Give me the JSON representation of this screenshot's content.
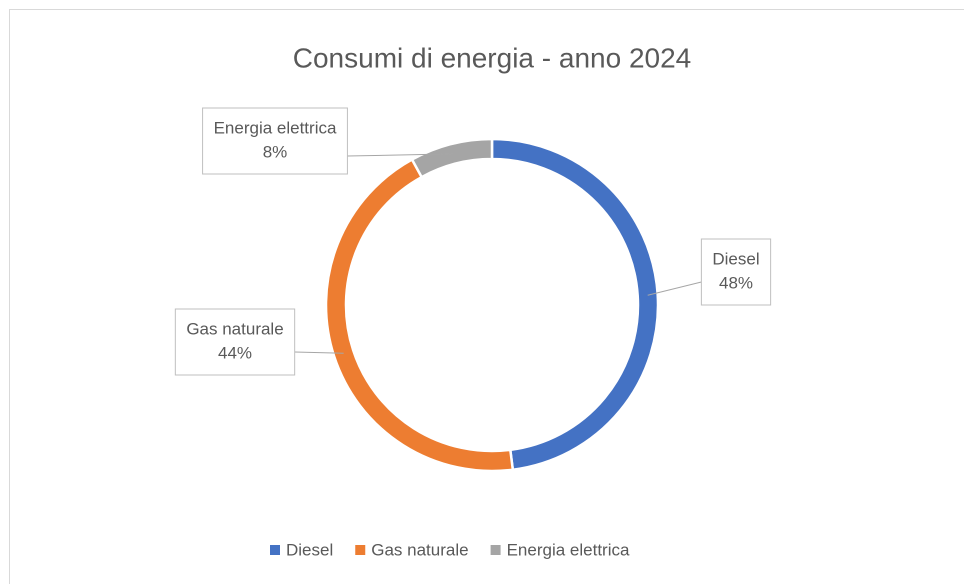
{
  "chart_data": {
    "type": "pie",
    "title": "Consumi di energia - anno 2024",
    "categories": [
      "Diesel",
      "Gas naturale",
      "Energia elettrica"
    ],
    "values": [
      48,
      44,
      8
    ],
    "value_labels": [
      "48%",
      "44%",
      "8%"
    ],
    "colors": [
      "#4472c4",
      "#ed7d31",
      "#a5a5a5"
    ],
    "donut": true,
    "legend": "bottom"
  }
}
